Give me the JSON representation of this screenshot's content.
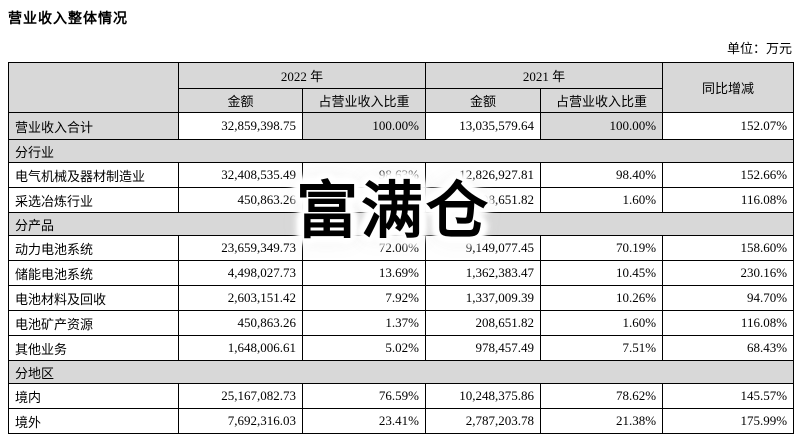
{
  "page": {
    "title": "营业收入整体情况",
    "unit_label": "单位：万元"
  },
  "watermark": {
    "text": "富满仓"
  },
  "colors": {
    "header_bg": "#d8d8d8",
    "border": "#000000",
    "text": "#000000"
  },
  "table": {
    "header": {
      "year_2022": "2022 年",
      "year_2021": "2021 年",
      "yoy": "同比增减",
      "amount": "金额",
      "pct_of_revenue": "占营业收入比重"
    },
    "rows": [
      {
        "type": "total",
        "label": "营业收入合计",
        "amount_2022": "32,859,398.75",
        "pct_2022": "100.00%",
        "amount_2021": "13,035,579.64",
        "pct_2021": "100.00%",
        "yoy": "152.07%"
      },
      {
        "type": "section",
        "label": "分行业"
      },
      {
        "type": "data",
        "label": "电气机械及器材制造业",
        "amount_2022": "32,408,535.49",
        "pct_2022": "98.63%",
        "amount_2021": "12,826,927.81",
        "pct_2021": "98.40%",
        "yoy": "152.66%"
      },
      {
        "type": "data",
        "label": "采选冶炼行业",
        "amount_2022": "450,863.26",
        "pct_2022": "1.37%",
        "amount_2021": "208,651.82",
        "pct_2021": "1.60%",
        "yoy": "116.08%"
      },
      {
        "type": "section",
        "label": "分产品"
      },
      {
        "type": "data",
        "label": "动力电池系统",
        "amount_2022": "23,659,349.73",
        "pct_2022": "72.00%",
        "amount_2021": "9,149,077.45",
        "pct_2021": "70.19%",
        "yoy": "158.60%"
      },
      {
        "type": "data",
        "label": "储能电池系统",
        "amount_2022": "4,498,027.73",
        "pct_2022": "13.69%",
        "amount_2021": "1,362,383.47",
        "pct_2021": "10.45%",
        "yoy": "230.16%"
      },
      {
        "type": "data",
        "label": "电池材料及回收",
        "amount_2022": "2,603,151.42",
        "pct_2022": "7.92%",
        "amount_2021": "1,337,009.39",
        "pct_2021": "10.26%",
        "yoy": "94.70%"
      },
      {
        "type": "data",
        "label": "电池矿产资源",
        "amount_2022": "450,863.26",
        "pct_2022": "1.37%",
        "amount_2021": "208,651.82",
        "pct_2021": "1.60%",
        "yoy": "116.08%"
      },
      {
        "type": "data",
        "label": "其他业务",
        "amount_2022": "1,648,006.61",
        "pct_2022": "5.02%",
        "amount_2021": "978,457.49",
        "pct_2021": "7.51%",
        "yoy": "68.43%"
      },
      {
        "type": "section",
        "label": "分地区"
      },
      {
        "type": "data",
        "label": "境内",
        "amount_2022": "25,167,082.73",
        "pct_2022": "76.59%",
        "amount_2021": "10,248,375.86",
        "pct_2021": "78.62%",
        "yoy": "145.57%"
      },
      {
        "type": "data",
        "label": "境外",
        "amount_2022": "7,692,316.03",
        "pct_2022": "23.41%",
        "amount_2021": "2,787,203.78",
        "pct_2021": "21.38%",
        "yoy": "175.99%"
      }
    ]
  }
}
